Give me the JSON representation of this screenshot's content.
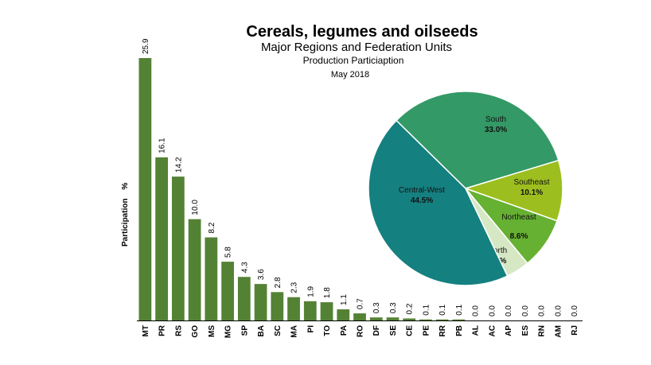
{
  "title": "Cereals, legumes and oilseeds",
  "subtitle": "Major Regions and Federation Units",
  "subtitle2": "Production Particiaption",
  "date": "May 2018",
  "chart_data": [
    {
      "type": "bar",
      "ylabel": "Participation",
      "ylabel_unit": "%",
      "ylim": [
        0,
        25.9
      ],
      "grid": false,
      "bar_color": "#548235",
      "categories": [
        "MT",
        "PR",
        "RS",
        "GO",
        "MS",
        "MG",
        "SP",
        "BA",
        "SC",
        "MA",
        "PI",
        "TO",
        "PA",
        "RO",
        "DF",
        "SE",
        "CE",
        "PE",
        "RR",
        "PB",
        "AL",
        "AC",
        "AP",
        "ES",
        "RN",
        "AM",
        "RJ"
      ],
      "values": [
        25.9,
        16.1,
        14.2,
        10.0,
        8.2,
        5.8,
        4.3,
        3.6,
        2.8,
        2.3,
        1.9,
        1.8,
        1.1,
        0.7,
        0.3,
        0.3,
        0.2,
        0.1,
        0.1,
        0.1,
        0.0,
        0.0,
        0.0,
        0.0,
        0.0,
        0.0,
        0.0
      ],
      "value_labels": [
        "25.9",
        "16.1",
        "14.2",
        "10.0",
        "8.2",
        "5.8",
        "4.3",
        "3.6",
        "2.8",
        "2.3",
        "1.9",
        "1.8",
        "1.1",
        "0.7",
        "0.3",
        "0.3",
        "0.2",
        "0.1",
        "0.1",
        "0.1",
        "0.0",
        "0.0",
        "0.0",
        "0.0",
        "0.0",
        "0.0",
        "0.0"
      ]
    },
    {
      "type": "pie",
      "slices": [
        {
          "name": "South",
          "value": 33.0,
          "label": "33.0%",
          "color": "#339966"
        },
        {
          "name": "Southeast",
          "value": 10.1,
          "label": "10.1%",
          "color": "#9cbf1f"
        },
        {
          "name": "Northeast",
          "value": 8.6,
          "label": "8.6%",
          "color": "#66b032"
        },
        {
          "name": "North",
          "value": 3.9,
          "label": "3.9%",
          "color": "#d6e8c3"
        },
        {
          "name": "Central-West",
          "value": 44.5,
          "label": "44.5%",
          "color": "#158080"
        }
      ]
    }
  ]
}
